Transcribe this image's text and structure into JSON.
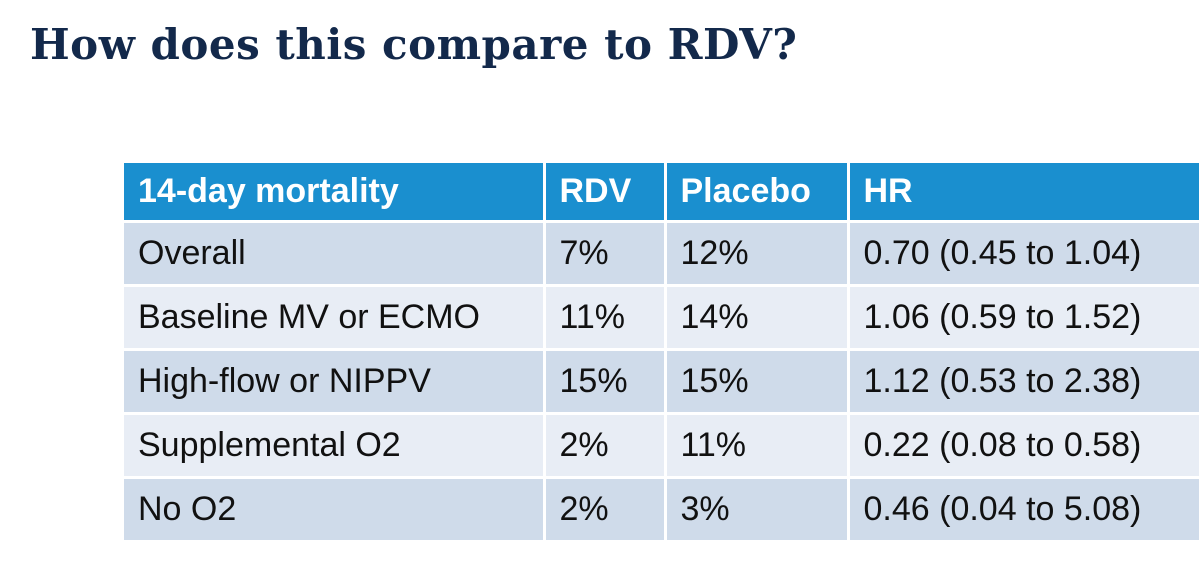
{
  "slide": {
    "title": "How does this compare to RDV?"
  },
  "table": {
    "headers": [
      "14-day mortality",
      "RDV",
      "Placebo",
      "HR"
    ],
    "rows": [
      [
        "Overall",
        "7%",
        "12%",
        "0.70 (0.45 to 1.04)"
      ],
      [
        "Baseline MV or ECMO",
        "11%",
        "14%",
        "1.06 (0.59 to 1.52)"
      ],
      [
        "High-flow or NIPPV",
        "15%",
        "15%",
        "1.12 (0.53 to 2.38)"
      ],
      [
        "Supplemental O2",
        "2%",
        "11%",
        "0.22 (0.08 to 0.58)"
      ],
      [
        "No O2",
        "2%",
        "3%",
        "0.46 (0.04 to 5.08)"
      ]
    ]
  },
  "colors": {
    "title": "#13294b",
    "header_background": "#1a8fcf",
    "row_dark": "#cfdbea",
    "row_light": "#e8edf5"
  }
}
